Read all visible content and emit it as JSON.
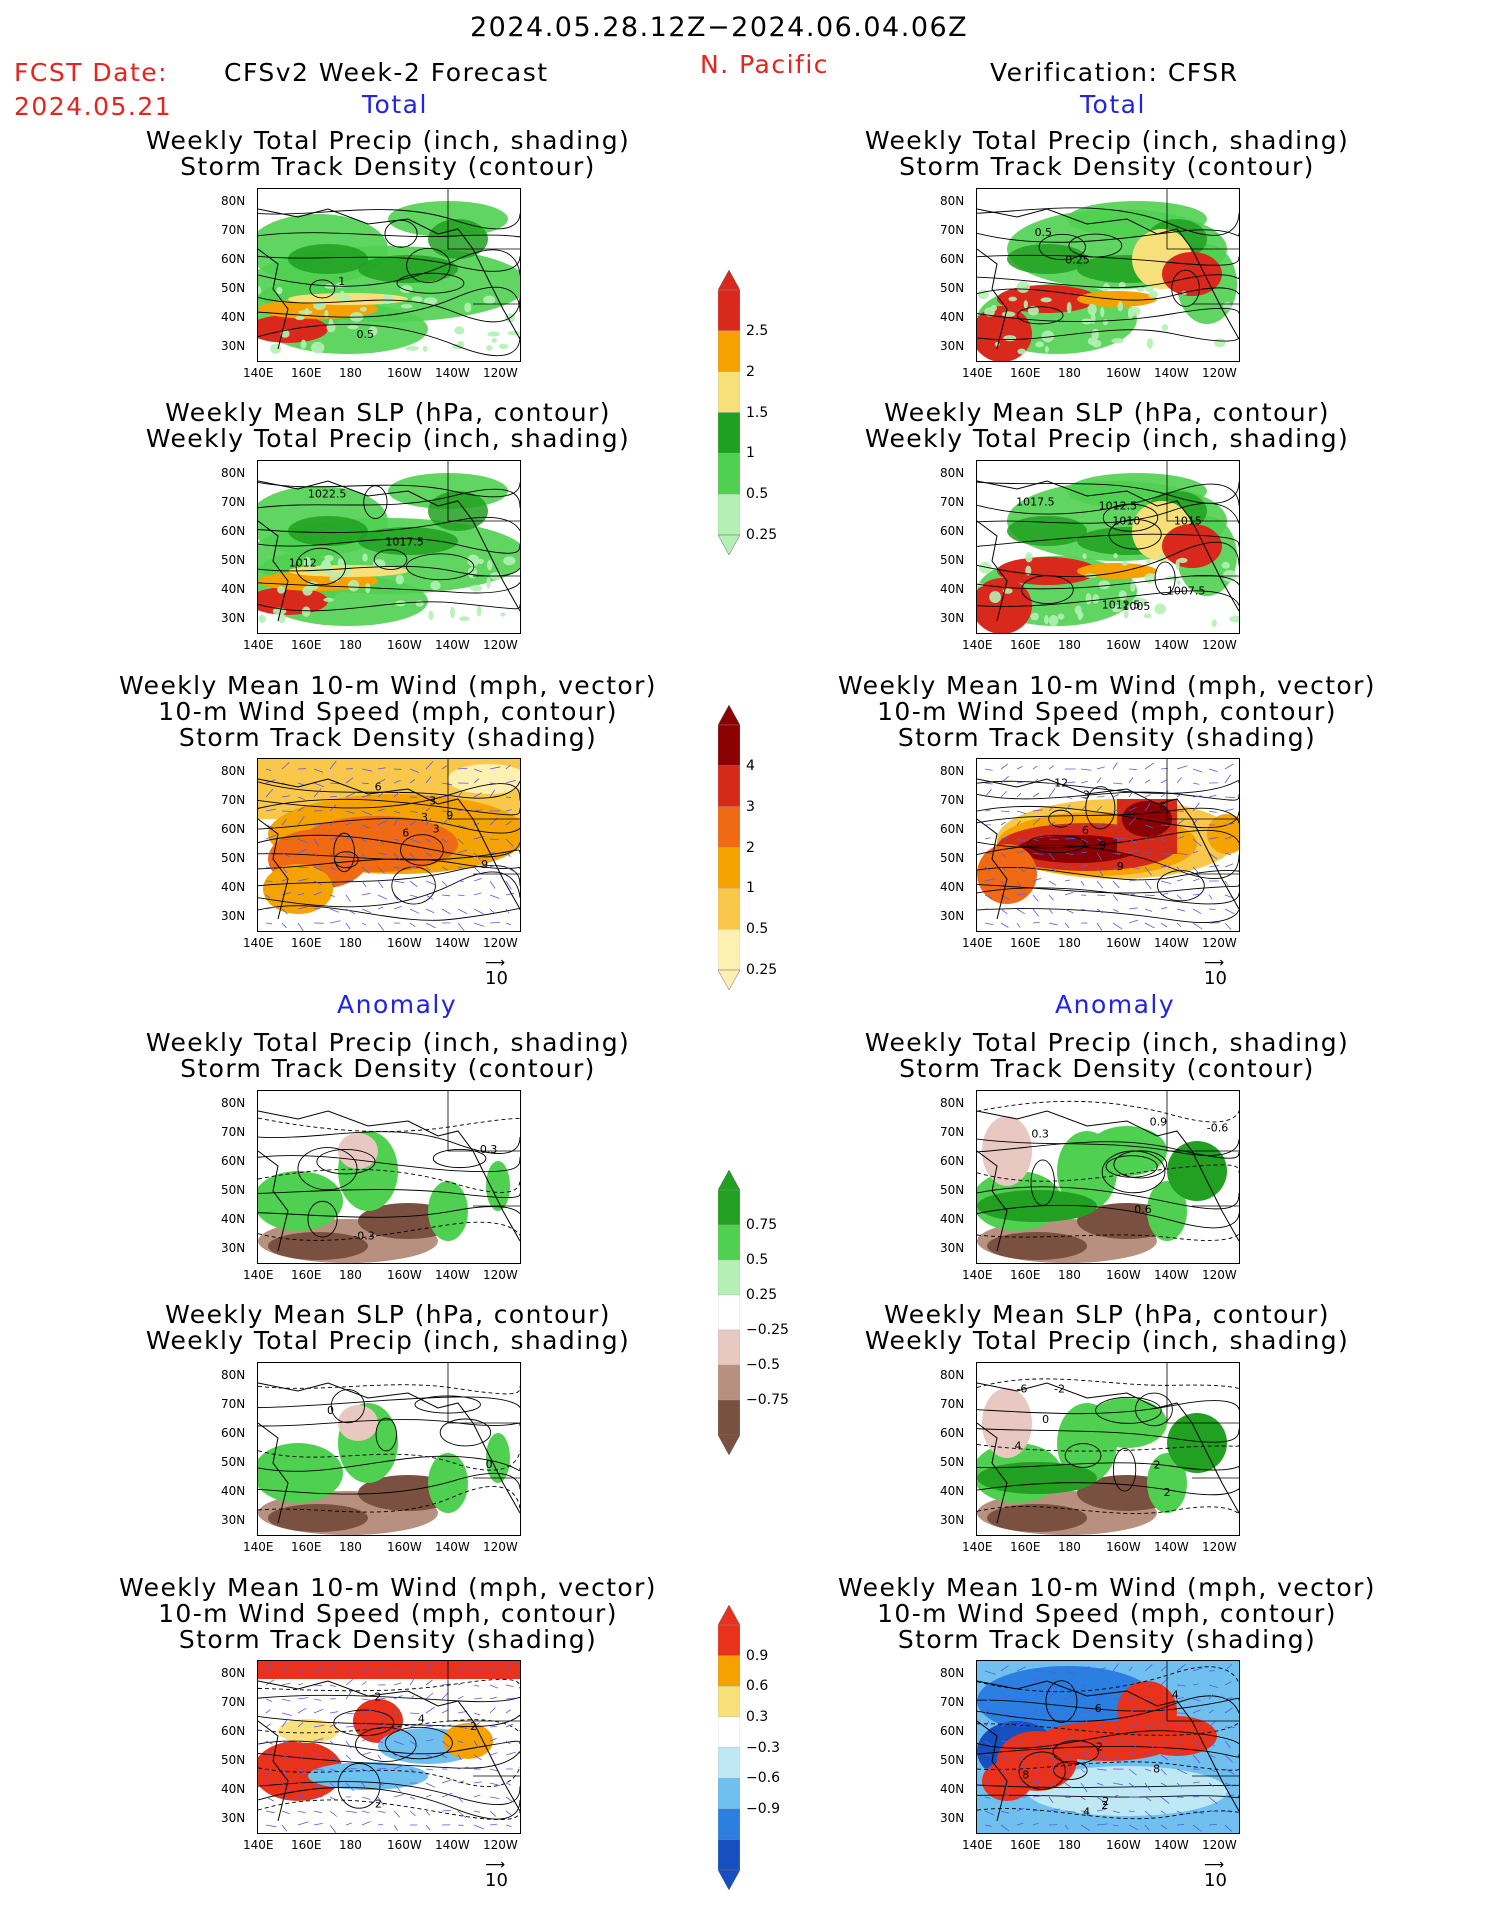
{
  "header": {
    "date_range": "2024.05.28.12Z−2024.06.04.06Z",
    "fcst_label": "FCST Date:",
    "fcst_date": "2024.05.21",
    "left_title": "CFSv2 Week-2 Forecast",
    "region": "N. Pacific",
    "right_title": "Verification: CFSR"
  },
  "sections": {
    "total": "Total",
    "anomaly": "Anomaly"
  },
  "titles": {
    "precip_storm": [
      "Weekly Total Precip (inch, shading)",
      "Storm Track Density (contour)"
    ],
    "slp_precip": [
      "Weekly Mean SLP (hPa, contour)",
      "Weekly Total Precip (inch, shading)"
    ],
    "wind": [
      "Weekly Mean 10-m Wind (mph, vector)",
      "10-m Wind Speed (mph, contour)",
      "Storm Track Density (shading)"
    ]
  },
  "axes": {
    "lat": [
      "80N",
      "70N",
      "60N",
      "50N",
      "40N",
      "30N"
    ],
    "lon": [
      "140E",
      "160E",
      "180",
      "160W",
      "140W",
      "120W"
    ]
  },
  "vector_ref": "10",
  "colorbars": {
    "precip_total": {
      "labels": [
        "2.5",
        "2",
        "1.5",
        "1",
        "0.5",
        "0.25"
      ],
      "colors": [
        "#d9281c",
        "#f5a100",
        "#f7e07a",
        "#20a020",
        "#50d050",
        "#b4f0b4"
      ]
    },
    "storm_total": {
      "labels": [
        "4",
        "3",
        "2",
        "1",
        "0.5",
        "0.25"
      ],
      "colors": [
        "#8b0000",
        "#d42a1a",
        "#f06a14",
        "#f5a300",
        "#f9c84a",
        "#fdf0b0"
      ]
    },
    "precip_anom": {
      "labels": [
        "0.75",
        "0.5",
        "0.25",
        "−0.25",
        "−0.5",
        "−0.75"
      ],
      "colors": [
        "#22a022",
        "#50d050",
        "#b4f0b4",
        "#ffffff",
        "#e8c8c0",
        "#b89080",
        "#7a5040"
      ]
    },
    "storm_anom": {
      "labels": [
        "0.9",
        "0.6",
        "0.3",
        "−0.3",
        "−0.6",
        "−0.9"
      ],
      "colors": [
        "#e8321c",
        "#f5a100",
        "#f9e07a",
        "#ffffff",
        "#bfe8f5",
        "#6fbfef",
        "#2a7fe0",
        "#1650c0"
      ]
    }
  },
  "contour_labels": {
    "p1l": [
      "1",
      "0.5"
    ],
    "p1r": [
      "0.25",
      "0.5"
    ],
    "p2l": [
      "1017.5",
      "1012",
      "1022.5"
    ],
    "p2r": [
      "1010",
      "1007.5",
      "1017.5",
      "1015",
      "1012.5",
      "1012.5",
      "1005"
    ],
    "p3l": [
      "3",
      "3",
      "6",
      "3",
      "6",
      "9",
      "9"
    ],
    "p3r": [
      "6",
      "9",
      "3",
      "12",
      "6",
      "9"
    ],
    "a1l": [
      "0.3",
      "-0.3"
    ],
    "a1r": [
      "-0.6",
      "0.3",
      "0.9",
      "0.6"
    ],
    "a2l": [
      "0",
      "0"
    ],
    "a2r": [
      "-2",
      "2",
      "-6",
      "4",
      "0",
      "2"
    ],
    "a3l": [
      "2",
      "4",
      "2",
      "2"
    ],
    "a3r": [
      "2",
      "2",
      "4",
      "6",
      "8",
      "4",
      "8",
      "2"
    ]
  }
}
